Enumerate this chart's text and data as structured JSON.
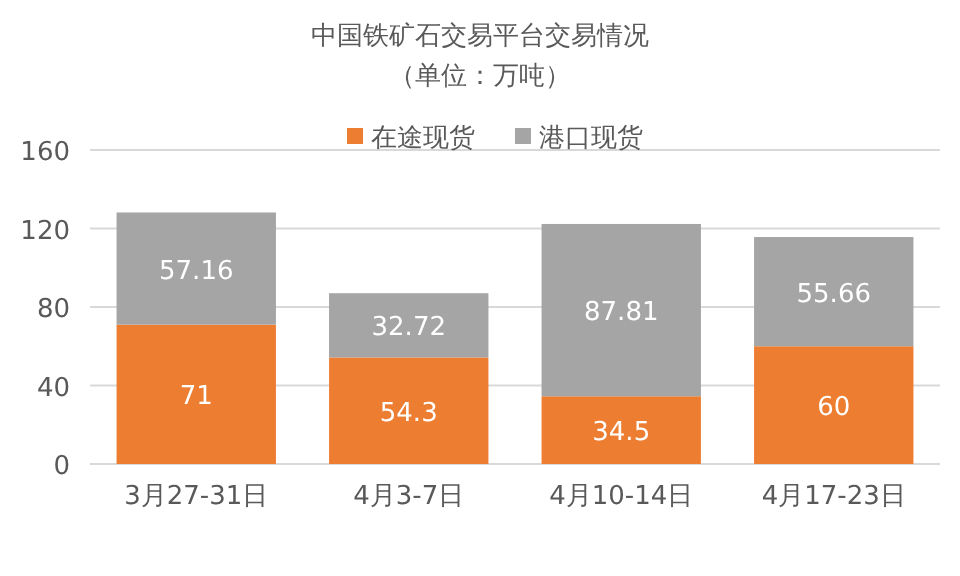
{
  "chart_data": {
    "type": "bar",
    "stacked": true,
    "title": "中国铁矿石交易平台交易情况",
    "subtitle": "（单位：万吨）",
    "categories": [
      "3月27-31日",
      "4月3-7日",
      "4月10-14日",
      "4月17-23日"
    ],
    "series": [
      {
        "name": "在途现货",
        "color": "#ed7d31",
        "values": [
          71,
          54.3,
          34.5,
          60
        ]
      },
      {
        "name": "港口现货",
        "color": "#a5a5a5",
        "values": [
          57.16,
          32.72,
          87.81,
          55.66
        ]
      }
    ],
    "ylim": [
      0,
      160
    ],
    "yticks": [
      0,
      40,
      80,
      120,
      160
    ],
    "grid": "y",
    "legend": "top",
    "data_labels": true
  }
}
